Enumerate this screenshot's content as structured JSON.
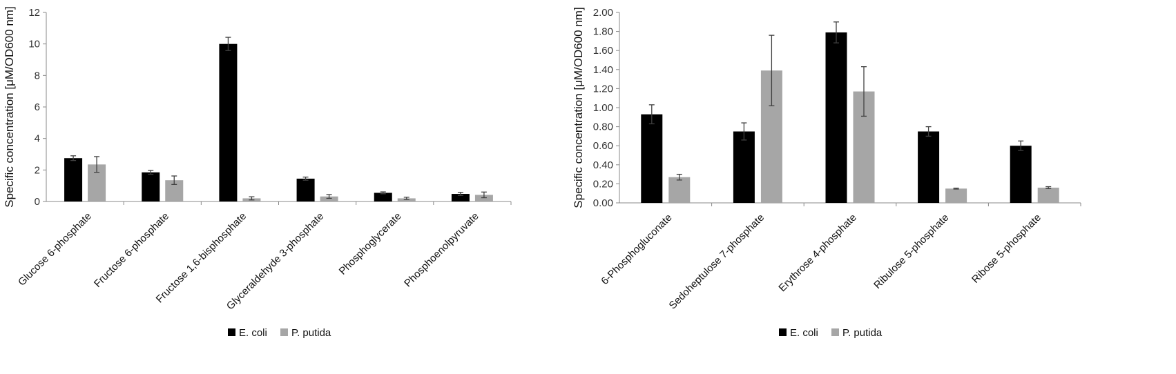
{
  "chart_data": [
    {
      "type": "bar",
      "ylabel": "Specific concentration [μM/OD600 nm]",
      "ylim": [
        0,
        12
      ],
      "yticks": [
        "0",
        "2",
        "4",
        "6",
        "8",
        "10",
        "12"
      ],
      "categories": [
        "Glucose 6-phosphate",
        "Fructose 6-phosphate",
        "Fructose 1,6-bisphosphate",
        "Glyceraldehyde 3-phosphate",
        "Phosphoglycerate",
        "Phosphoenolpyruvate"
      ],
      "series": [
        {
          "name": "E. coli",
          "color": "#000000",
          "values": [
            2.75,
            1.85,
            10.0,
            1.45,
            0.55,
            0.48
          ],
          "errors": [
            0.15,
            0.12,
            0.42,
            0.1,
            0.06,
            0.1
          ]
        },
        {
          "name": "P. putida",
          "color": "#a6a6a6",
          "values": [
            2.35,
            1.35,
            0.2,
            0.32,
            0.2,
            0.42
          ],
          "errors": [
            0.5,
            0.27,
            0.1,
            0.12,
            0.07,
            0.18
          ]
        }
      ],
      "grid": false,
      "legend": "bottom"
    },
    {
      "type": "bar",
      "ylabel": "Specific concentration [μM/OD600 nm]",
      "ylim": [
        0,
        2
      ],
      "yticks": [
        "0.00",
        "0.20",
        "0.40",
        "0.60",
        "0.80",
        "1.00",
        "1.20",
        "1.40",
        "1.60",
        "1.80",
        "2.00"
      ],
      "categories": [
        "6-Phosphogluconate",
        "Sedoheptulose 7-phosphate",
        "Erythrose 4-phosphate",
        "Ribulose 5-phosphate",
        "Ribose 5-phosphate"
      ],
      "series": [
        {
          "name": "E. coli",
          "color": "#000000",
          "values": [
            0.93,
            0.75,
            1.79,
            0.75,
            0.6
          ],
          "errors": [
            0.1,
            0.09,
            0.11,
            0.05,
            0.05
          ]
        },
        {
          "name": "P. putida",
          "color": "#a6a6a6",
          "values": [
            0.27,
            1.39,
            1.17,
            0.15,
            0.16
          ],
          "errors": [
            0.03,
            0.37,
            0.26,
            0.005,
            0.01
          ]
        }
      ],
      "grid": false,
      "legend": "bottom"
    }
  ]
}
